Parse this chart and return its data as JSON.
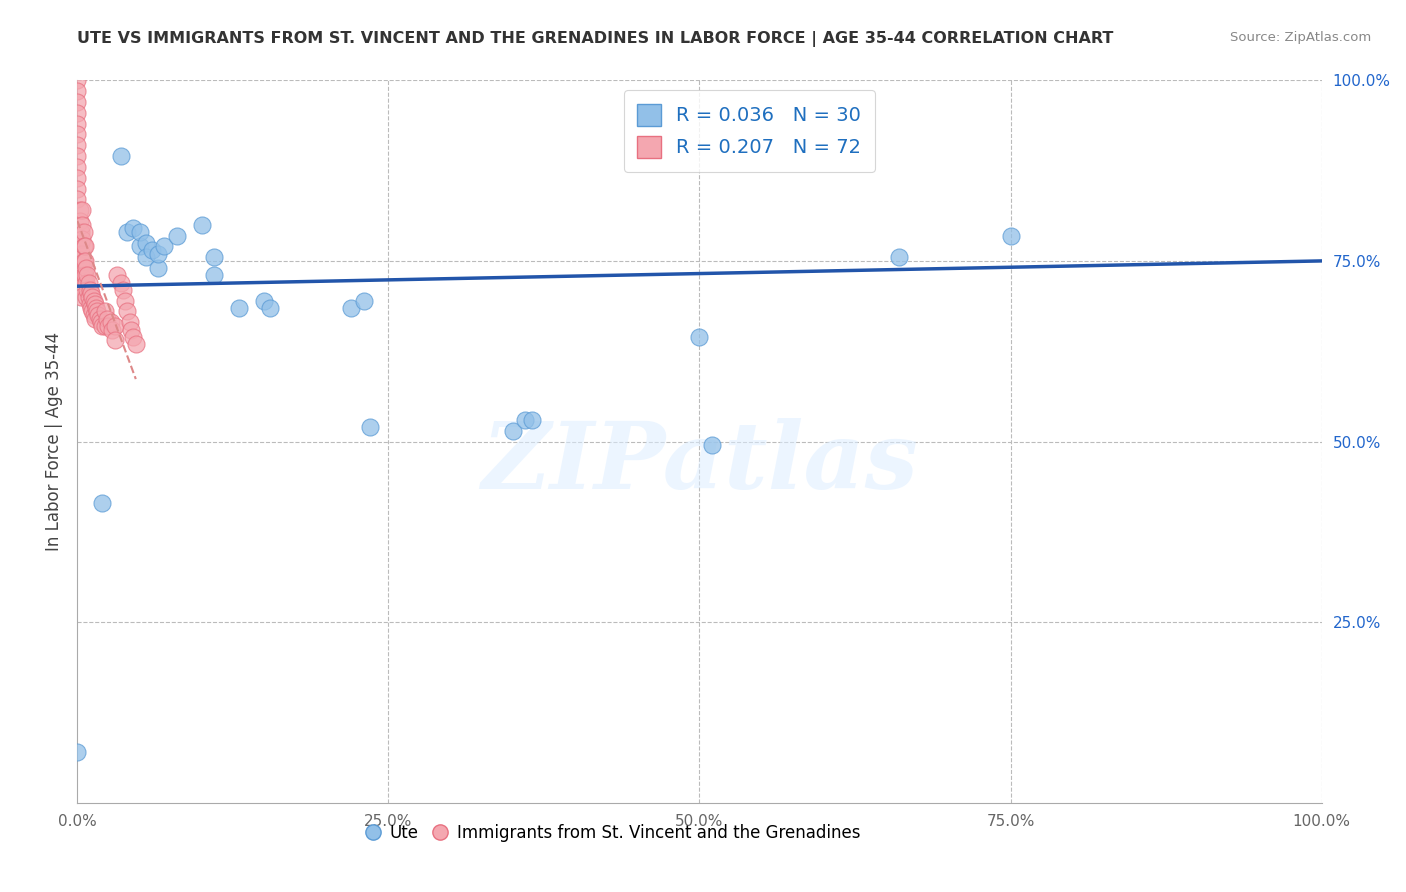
{
  "title": "UTE VS IMMIGRANTS FROM ST. VINCENT AND THE GRENADINES IN LABOR FORCE | AGE 35-44 CORRELATION CHART",
  "source_text": "Source: ZipAtlas.com",
  "ylabel": "In Labor Force | Age 35-44",
  "xlim": [
    0.0,
    1.0
  ],
  "ylim": [
    0.0,
    1.0
  ],
  "xtick_labels": [
    "0.0%",
    "25.0%",
    "50.0%",
    "75.0%",
    "100.0%"
  ],
  "xtick_positions": [
    0.0,
    0.25,
    0.5,
    0.75,
    1.0
  ],
  "right_ytick_labels": [
    "25.0%",
    "50.0%",
    "75.0%",
    "100.0%"
  ],
  "right_ytick_positions": [
    0.25,
    0.5,
    0.75,
    1.0
  ],
  "blue_color": "#92C0E8",
  "blue_edge_color": "#5B9BD5",
  "pink_color": "#F4A7B0",
  "pink_edge_color": "#E87080",
  "trendline_blue_color": "#2255AA",
  "trendline_pink_color": "#DD8888",
  "background_color": "#FFFFFF",
  "grid_color": "#BBBBBB",
  "legend_R1": "R = 0.036",
  "legend_N1": "N = 30",
  "legend_R2": "R = 0.207",
  "legend_N2": "N = 72",
  "legend_text_color": "#1F6FBF",
  "right_axis_color": "#2266CC",
  "watermark_text": "ZIPatlas",
  "blue_scatter": [
    [
      0.0,
      0.07
    ],
    [
      0.02,
      0.415
    ],
    [
      0.035,
      0.895
    ],
    [
      0.04,
      0.79
    ],
    [
      0.045,
      0.795
    ],
    [
      0.05,
      0.77
    ],
    [
      0.05,
      0.79
    ],
    [
      0.055,
      0.775
    ],
    [
      0.055,
      0.755
    ],
    [
      0.06,
      0.765
    ],
    [
      0.065,
      0.74
    ],
    [
      0.065,
      0.76
    ],
    [
      0.07,
      0.77
    ],
    [
      0.08,
      0.785
    ],
    [
      0.1,
      0.8
    ],
    [
      0.11,
      0.755
    ],
    [
      0.11,
      0.73
    ],
    [
      0.13,
      0.685
    ],
    [
      0.15,
      0.695
    ],
    [
      0.155,
      0.685
    ],
    [
      0.22,
      0.685
    ],
    [
      0.23,
      0.695
    ],
    [
      0.235,
      0.52
    ],
    [
      0.35,
      0.515
    ],
    [
      0.36,
      0.53
    ],
    [
      0.365,
      0.53
    ],
    [
      0.5,
      0.645
    ],
    [
      0.51,
      0.495
    ],
    [
      0.66,
      0.755
    ],
    [
      0.75,
      0.785
    ]
  ],
  "pink_scatter": [
    [
      0.0,
      1.0
    ],
    [
      0.0,
      0.985
    ],
    [
      0.0,
      0.97
    ],
    [
      0.0,
      0.955
    ],
    [
      0.0,
      0.94
    ],
    [
      0.0,
      0.925
    ],
    [
      0.0,
      0.91
    ],
    [
      0.0,
      0.895
    ],
    [
      0.0,
      0.88
    ],
    [
      0.0,
      0.865
    ],
    [
      0.0,
      0.85
    ],
    [
      0.0,
      0.835
    ],
    [
      0.002,
      0.82
    ],
    [
      0.002,
      0.805
    ],
    [
      0.003,
      0.79
    ],
    [
      0.003,
      0.775
    ],
    [
      0.003,
      0.76
    ],
    [
      0.003,
      0.745
    ],
    [
      0.003,
      0.73
    ],
    [
      0.003,
      0.715
    ],
    [
      0.003,
      0.7
    ],
    [
      0.004,
      0.82
    ],
    [
      0.004,
      0.8
    ],
    [
      0.004,
      0.78
    ],
    [
      0.004,
      0.76
    ],
    [
      0.005,
      0.79
    ],
    [
      0.005,
      0.77
    ],
    [
      0.005,
      0.75
    ],
    [
      0.005,
      0.73
    ],
    [
      0.006,
      0.77
    ],
    [
      0.006,
      0.75
    ],
    [
      0.006,
      0.73
    ],
    [
      0.007,
      0.74
    ],
    [
      0.007,
      0.72
    ],
    [
      0.007,
      0.7
    ],
    [
      0.008,
      0.73
    ],
    [
      0.008,
      0.71
    ],
    [
      0.009,
      0.72
    ],
    [
      0.009,
      0.7
    ],
    [
      0.01,
      0.71
    ],
    [
      0.01,
      0.69
    ],
    [
      0.011,
      0.705
    ],
    [
      0.011,
      0.685
    ],
    [
      0.012,
      0.7
    ],
    [
      0.012,
      0.68
    ],
    [
      0.013,
      0.695
    ],
    [
      0.013,
      0.675
    ],
    [
      0.014,
      0.69
    ],
    [
      0.014,
      0.67
    ],
    [
      0.015,
      0.685
    ],
    [
      0.016,
      0.68
    ],
    [
      0.017,
      0.675
    ],
    [
      0.018,
      0.67
    ],
    [
      0.019,
      0.665
    ],
    [
      0.02,
      0.66
    ],
    [
      0.022,
      0.68
    ],
    [
      0.022,
      0.66
    ],
    [
      0.024,
      0.67
    ],
    [
      0.025,
      0.66
    ],
    [
      0.027,
      0.665
    ],
    [
      0.028,
      0.655
    ],
    [
      0.03,
      0.66
    ],
    [
      0.03,
      0.64
    ],
    [
      0.032,
      0.73
    ],
    [
      0.035,
      0.72
    ],
    [
      0.037,
      0.71
    ],
    [
      0.038,
      0.695
    ],
    [
      0.04,
      0.68
    ],
    [
      0.042,
      0.665
    ],
    [
      0.043,
      0.655
    ],
    [
      0.045,
      0.645
    ],
    [
      0.047,
      0.635
    ]
  ]
}
